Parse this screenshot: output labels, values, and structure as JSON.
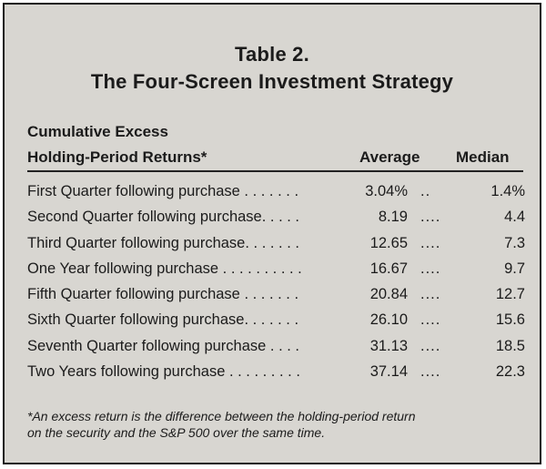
{
  "title": {
    "line1": "Table 2.",
    "line2": "The Four-Screen Investment Strategy"
  },
  "header": {
    "label_line1": "Cumulative Excess",
    "label_line2": "Holding-Period Returns*",
    "average": "Average",
    "median": "Median"
  },
  "rows": [
    {
      "label": "First Quarter following purchase . . . . . . .",
      "average": "3.04%",
      "sep": "..",
      "median": "1.4%"
    },
    {
      "label": "Second Quarter following purchase. . . . .",
      "average": "8.19",
      "sep": "....",
      "median": "4.4"
    },
    {
      "label": "Third Quarter following purchase. . . . . . .",
      "average": "12.65",
      "sep": "....",
      "median": "7.3"
    },
    {
      "label": "One Year following purchase . . . . . . . . . .",
      "average": "16.67",
      "sep": "....",
      "median": "9.7"
    },
    {
      "label": "Fifth Quarter following purchase . . . . . . .",
      "average": "20.84",
      "sep": "....",
      "median": "12.7"
    },
    {
      "label": "Sixth Quarter following purchase. . . . . . .",
      "average": "26.10",
      "sep": "....",
      "median": "15.6"
    },
    {
      "label": "Seventh Quarter following purchase . . . .",
      "average": "31.13",
      "sep": "....",
      "median": "18.5"
    },
    {
      "label": "Two Years following purchase . . . . . . . . .",
      "average": "37.14",
      "sep": "....",
      "median": "22.3"
    }
  ],
  "footnote": {
    "line1": "*An excess return is the difference between the holding-period return",
    "line2": "on the security and the S&P 500 over the same time."
  }
}
